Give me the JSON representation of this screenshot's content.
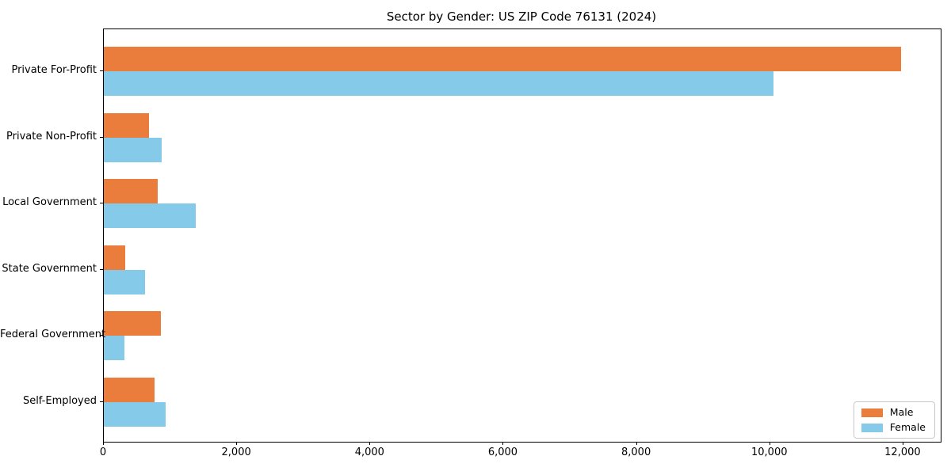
{
  "title": "Sector by Gender: US ZIP Code 76131 (2024)",
  "chart_data": {
    "type": "bar",
    "orientation": "horizontal",
    "title": "Sector by Gender: US ZIP Code 76131 (2024)",
    "categories": [
      "Private For-Profit",
      "Private Non-Profit",
      "Local Government",
      "State Government",
      "Federal Government",
      "Self-Employed"
    ],
    "series": [
      {
        "name": "Male",
        "color": "#EB7D3C",
        "values": [
          11960,
          680,
          805,
          320,
          860,
          760
        ]
      },
      {
        "name": "Female",
        "color": "#85CAE8",
        "values": [
          10050,
          865,
          1375,
          615,
          310,
          930
        ]
      }
    ],
    "xlabel": "",
    "ylabel": "",
    "xlim": [
      0,
      12560
    ],
    "x_ticks": [
      0,
      2000,
      4000,
      6000,
      8000,
      10000,
      12000
    ],
    "x_tick_labels": [
      "0",
      "2,000",
      "4,000",
      "6,000",
      "8,000",
      "10,000",
      "12,000"
    ],
    "grid": false,
    "legend_position": "lower right"
  },
  "legend": {
    "items": [
      {
        "label": "Male",
        "color": "#EB7D3C"
      },
      {
        "label": "Female",
        "color": "#85CAE8"
      }
    ]
  }
}
